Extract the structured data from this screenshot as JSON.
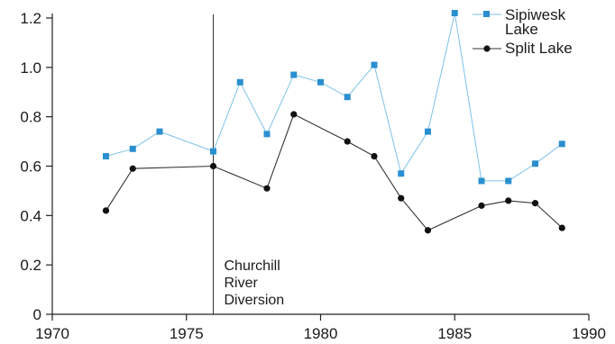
{
  "chart_data": {
    "type": "line",
    "title": "",
    "xlabel": "",
    "ylabel": "",
    "xlim": [
      1970,
      1990
    ],
    "ylim": [
      0,
      1.2
    ],
    "x_ticks": [
      1970,
      1975,
      1980,
      1985,
      1990
    ],
    "y_ticks": [
      0,
      0.2,
      0.4,
      0.6,
      0.8,
      1.0,
      1.2
    ],
    "x_tick_labels": [
      "1970",
      "1975",
      "1980",
      "1985",
      "1990"
    ],
    "y_tick_labels": [
      "0",
      "0.2",
      "0.4",
      "0.6",
      "0.8",
      "1.0",
      "1.2"
    ],
    "grid": false,
    "legend_position": "top-right",
    "series": [
      {
        "name_lines": [
          "Sipiwesk",
          "Lake"
        ],
        "color": "#2a8fd0",
        "marker": "square",
        "x": [
          1972,
          1973,
          1974,
          1976,
          1977,
          1978,
          1979,
          1980,
          1981,
          1982,
          1983,
          1984,
          1985,
          1986,
          1987,
          1988,
          1989
        ],
        "values": [
          0.64,
          0.67,
          0.74,
          0.66,
          0.94,
          0.73,
          0.97,
          0.94,
          0.88,
          1.01,
          0.57,
          0.74,
          1.22,
          0.54,
          0.54,
          0.61,
          0.69
        ]
      },
      {
        "name_lines": [
          "Split Lake"
        ],
        "color": "#111111",
        "marker": "circle",
        "x": [
          1972,
          1973,
          1976,
          1978,
          1979,
          1981,
          1982,
          1983,
          1984,
          1986,
          1987,
          1988,
          1989
        ],
        "values": [
          0.42,
          0.59,
          0.6,
          0.51,
          0.81,
          0.7,
          0.64,
          0.47,
          0.34,
          0.44,
          0.46,
          0.45,
          0.35
        ]
      }
    ],
    "annotation": {
      "x": 1976,
      "lines": [
        "Churchill",
        "River",
        "Diversion"
      ]
    }
  }
}
